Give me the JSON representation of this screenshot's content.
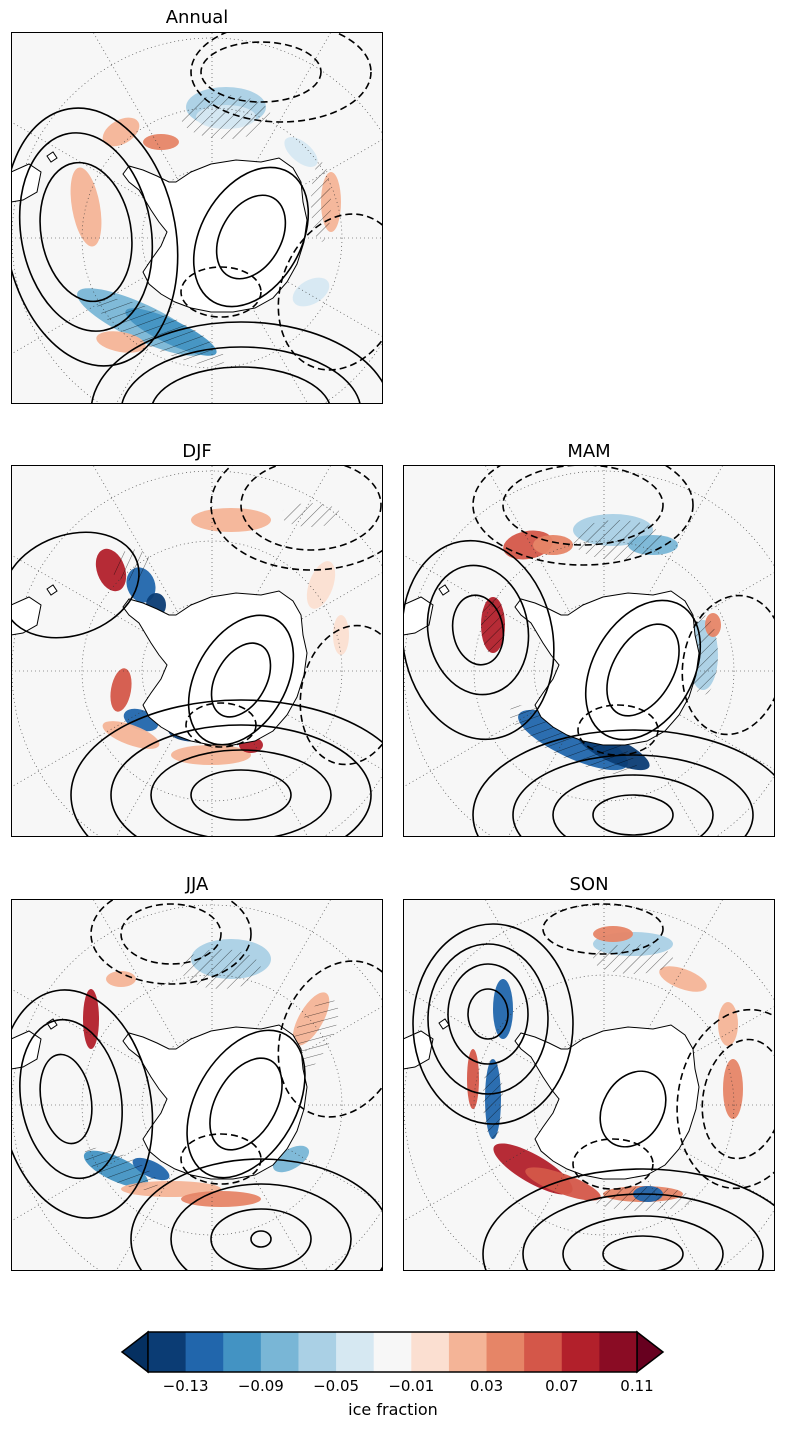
{
  "panels": [
    {
      "title": "Annual"
    },
    {
      "title": "DJF"
    },
    {
      "title": "MAM"
    },
    {
      "title": "JJA"
    },
    {
      "title": "SON"
    }
  ],
  "colorbar": {
    "label": "ice fraction",
    "ticks": [
      "−0.13",
      "−0.09",
      "−0.05",
      "−0.01",
      "0.03",
      "0.07",
      "0.11"
    ],
    "colors": [
      "#0b3c74",
      "#2166ac",
      "#4393c3",
      "#79b6d6",
      "#aad0e5",
      "#d6e8f2",
      "#f7f7f7",
      "#fbdfd1",
      "#f4b497",
      "#e68567",
      "#d45749",
      "#b2202b",
      "#8a0c24"
    ],
    "under_color": "#053061",
    "over_color": "#67001f"
  },
  "colors": {
    "ocean_background": "#f7f7f7",
    "land": "#ffffff",
    "contour": "#000000"
  }
}
